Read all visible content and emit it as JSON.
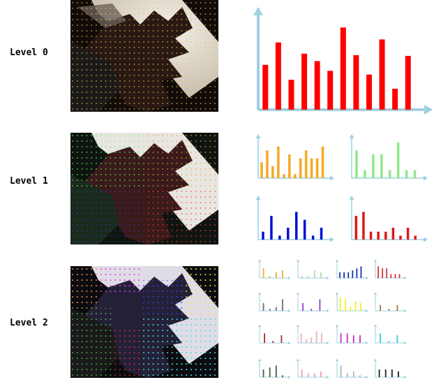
{
  "labels": {
    "level0": "Level 0",
    "level1": "Level 1",
    "level2": "Level 2"
  },
  "colors": {
    "axis": "#9fd0e2",
    "level0": "#ff0000",
    "level1": [
      "#f7a823",
      "#90e888",
      "#0010d8",
      "#e01818"
    ],
    "level2": [
      "#f0b030",
      "#a8e0a8",
      "#2030b0",
      "#d83040",
      "#707070",
      "#9040d0",
      "#f0f020",
      "#a07840",
      "#a03030",
      "#f0b0c0",
      "#c030c0",
      "#30d0e0",
      "#406040",
      "#e8a0a8",
      "#b0b0b0",
      "#202020"
    ]
  },
  "histograms": {
    "level0": [
      6,
      9,
      4,
      7.5,
      6.5,
      5.2,
      11,
      7.3,
      4.7,
      9.4,
      2.8,
      7.2
    ],
    "level1": [
      [
        4,
        7,
        3,
        8,
        1,
        6,
        1,
        5,
        7,
        5,
        5,
        8
      ],
      [
        7,
        2,
        6,
        6,
        2,
        9,
        2,
        2
      ],
      [
        2,
        6,
        1,
        3,
        7,
        5,
        1,
        3
      ],
      [
        6,
        7,
        2,
        2,
        2,
        3,
        1,
        3,
        1
      ]
    ],
    "level2": [
      [
        5,
        1,
        3,
        4
      ],
      [
        1,
        1,
        4,
        3
      ],
      [
        3,
        3,
        3,
        4,
        5,
        6
      ],
      [
        6,
        5,
        5,
        2,
        2,
        2
      ],
      [
        4,
        1,
        2,
        6
      ],
      [
        4,
        1,
        6
      ],
      [
        7,
        6,
        2,
        5,
        4
      ],
      [
        3,
        1,
        3
      ],
      [
        5,
        1,
        4
      ],
      [
        5,
        2,
        3,
        6,
        5
      ],
      [
        5,
        5,
        4,
        4
      ],
      [
        5,
        1,
        4
      ],
      [
        4,
        5,
        6,
        1
      ],
      [
        4,
        2,
        2,
        3
      ],
      [
        6,
        2,
        3,
        1
      ],
      [
        4,
        4,
        4,
        3
      ]
    ]
  }
}
